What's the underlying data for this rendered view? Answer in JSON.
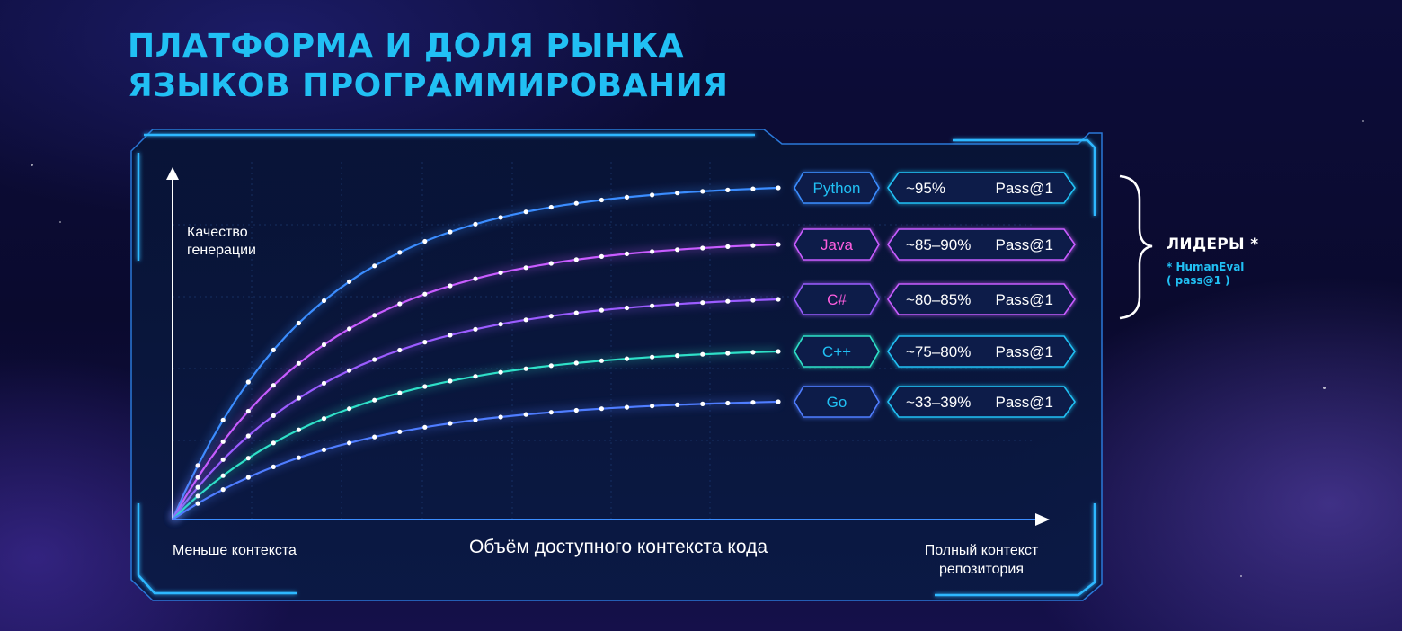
{
  "title": {
    "line1": "ПЛАТФОРМА И ДОЛЯ РЫНКА",
    "line2": "ЯЗЫКОВ ПРОГРАММИРОВАНИЯ"
  },
  "colors": {
    "title": "#21c0f4",
    "blue": "#3b8dff",
    "violet": "#c85cff",
    "purple": "#9b5cff",
    "teal": "#2fe0c8",
    "cyan": "#21c0f4",
    "pink": "#ff5ee0"
  },
  "leaders": {
    "title": "ЛИДЕРЫ *",
    "note_line1": "* HumanEval",
    "note_line2": "( pass@1 )"
  },
  "chart_data": {
    "type": "line",
    "ylabel": "Качество генерации",
    "xlabel": "Объём доступного контекста кода",
    "x_start_label": "Меньше контекста",
    "x_end_label": "Полный контекст репозитория",
    "metric_label": "Pass@1",
    "series": [
      {
        "name": "Python",
        "value": "~95%",
        "plateau": 0.95,
        "color": "#3b8dff",
        "name_color": "#21c0f4"
      },
      {
        "name": "Java",
        "value": "~85–90%",
        "plateau": 0.875,
        "color": "#c85cff",
        "name_color": "#ff5ee0"
      },
      {
        "name": "C#",
        "value": "~80–85%",
        "plateau": 0.825,
        "color": "#9b5cff",
        "name_color": "#ff5ee0"
      },
      {
        "name": "C++",
        "value": "~75–80%",
        "plateau": 0.775,
        "color": "#2fe0c8",
        "name_color": "#21c0f4"
      },
      {
        "name": "Go",
        "value": "~33–39%",
        "plateau": 0.36,
        "color": "#4f7dff",
        "name_color": "#21c0f4"
      }
    ]
  }
}
